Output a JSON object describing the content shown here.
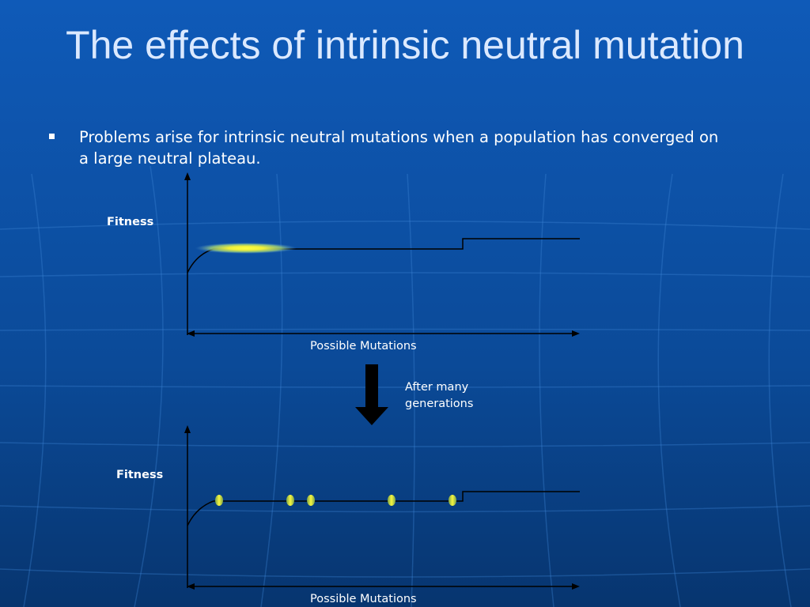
{
  "slide": {
    "title": "The effects of intrinsic neutral mutation",
    "bullet": "Problems arise for intrinsic neutral mutations when a population has converged on a large neutral plateau."
  },
  "diagram_top": {
    "y_label": "Fitness",
    "x_label": "Possible Mutations"
  },
  "transition": {
    "label_line1": "After many",
    "label_line2": "generations"
  },
  "diagram_bottom": {
    "y_label": "Fitness",
    "x_label": "Possible Mutations"
  },
  "colors": {
    "background": "#0d4fa3",
    "population": "#f5f53a",
    "arrow": "#000000"
  }
}
